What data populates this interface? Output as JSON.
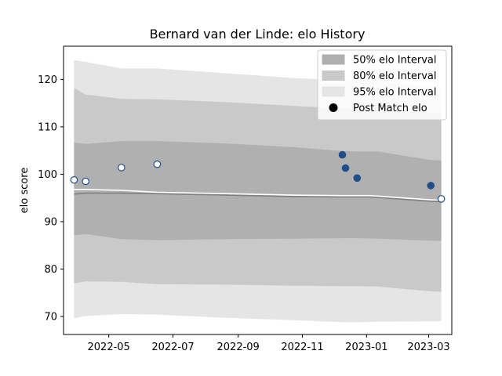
{
  "chart_data": {
    "type": "line",
    "title": "Bernard van der Linde: elo History",
    "xlabel": "",
    "ylabel": "elo score",
    "x_ticks": [
      "2022-05",
      "2022-07",
      "2022-09",
      "2022-11",
      "2023-01",
      "2023-03"
    ],
    "y_ticks": [
      70,
      80,
      90,
      100,
      110,
      120
    ],
    "xlim": [
      "2022-03-19",
      "2023-03-23"
    ],
    "ylim": [
      66.2,
      127.0
    ],
    "legend_position": "top-right",
    "grid": false,
    "colors": {
      "band_50": "#b0b0b0",
      "band_80": "#c9c9c9",
      "band_95": "#e5e5e5",
      "line_mean": "#808080",
      "line_white": "#ffffff",
      "marker_fill": "#ffffff",
      "marker_fill_dark": "#1f4e8c",
      "marker_edge": "#1f4e8c"
    },
    "band_x": [
      "2022-03-29",
      "2022-04-09",
      "2022-05-13",
      "2022-06-16",
      "2022-08-20",
      "2022-10-24",
      "2022-12-09",
      "2022-12-23",
      "2023-01-12",
      "2023-03-03",
      "2023-03-13"
    ],
    "bands": [
      {
        "name": "50% elo Interval",
        "upper": [
          106.7,
          106.4,
          107.0,
          107.0,
          106.5,
          105.7,
          104.9,
          104.8,
          104.8,
          103.0,
          102.9
        ],
        "lower": [
          87.1,
          87.4,
          86.3,
          86.1,
          86.3,
          86.4,
          86.5,
          86.5,
          86.4,
          86.0,
          86.0
        ]
      },
      {
        "name": "80% elo Interval",
        "upper": [
          118.2,
          116.8,
          115.9,
          115.8,
          115.2,
          114.4,
          113.9,
          113.8,
          113.6,
          113.0,
          113.0
        ],
        "lower": [
          77.0,
          77.4,
          77.3,
          76.8,
          76.7,
          76.5,
          76.4,
          76.4,
          76.3,
          75.3,
          75.2
        ]
      },
      {
        "name": "95% elo Interval",
        "upper": [
          124.1,
          123.7,
          122.3,
          122.3,
          121.3,
          120.3,
          119.8,
          119.8,
          119.6,
          118.5,
          118.4
        ],
        "lower": [
          69.6,
          70.1,
          70.5,
          70.4,
          69.7,
          69.2,
          68.8,
          68.8,
          68.9,
          69.0,
          69.0
        ]
      }
    ],
    "mean_line": {
      "x": [
        "2022-03-29",
        "2022-04-09",
        "2022-05-13",
        "2022-06-16",
        "2022-08-20",
        "2022-10-24",
        "2022-12-09",
        "2023-01-05",
        "2023-03-03",
        "2023-03-13"
      ],
      "y": [
        95.8,
        96.0,
        96.0,
        95.9,
        95.6,
        95.3,
        95.2,
        95.2,
        94.3,
        94.2
      ]
    },
    "white_line": {
      "x": [
        "2022-03-29",
        "2022-04-09",
        "2022-05-13",
        "2022-06-16",
        "2022-08-20",
        "2022-10-24",
        "2022-12-09",
        "2022-12-23",
        "2023-01-05",
        "2023-03-03",
        "2023-03-13"
      ],
      "y": [
        96.8,
        96.8,
        96.6,
        96.2,
        95.9,
        95.6,
        95.5,
        95.5,
        95.5,
        94.6,
        94.5
      ]
    },
    "series": [
      {
        "name": "Post Match elo",
        "x": [
          "2022-03-29",
          "2022-04-09",
          "2022-05-13",
          "2022-06-16",
          "2022-12-09",
          "2022-12-12",
          "2022-12-23",
          "2023-03-03",
          "2023-03-13"
        ],
        "y": [
          98.8,
          98.5,
          101.4,
          102.1,
          104.1,
          101.3,
          99.2,
          97.6,
          94.8
        ],
        "dark": [
          false,
          false,
          false,
          false,
          true,
          true,
          true,
          true,
          false
        ]
      }
    ],
    "legend": [
      {
        "label": "50% elo Interval",
        "kind": "patch",
        "color_key": "band_50"
      },
      {
        "label": "80% elo Interval",
        "kind": "patch",
        "color_key": "band_80"
      },
      {
        "label": "95% elo Interval",
        "kind": "patch",
        "color_key": "band_95"
      },
      {
        "label": "Post Match elo",
        "kind": "marker",
        "color_key": "marker_black"
      }
    ]
  }
}
